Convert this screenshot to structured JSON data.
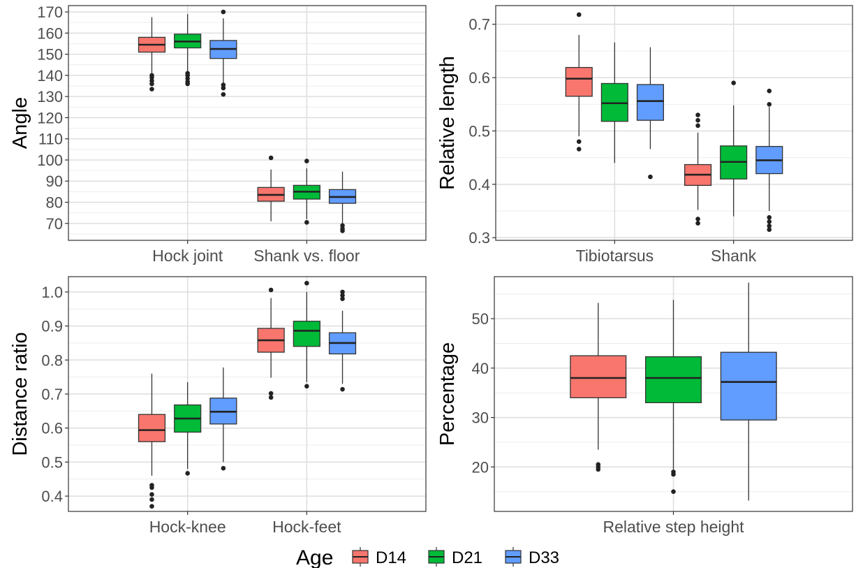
{
  "legend": {
    "title": "Age",
    "placement": "bottom",
    "entries": [
      {
        "label": "D14",
        "color": "#F8766D"
      },
      {
        "label": "D21",
        "color": "#00BA38"
      },
      {
        "label": "D33",
        "color": "#619CFF"
      }
    ]
  },
  "chart_data": [
    {
      "type": "box",
      "title": "",
      "xlabel": "",
      "ylabel": "Angle",
      "ylim": [
        62,
        173
      ],
      "yticks": [
        70,
        80,
        90,
        100,
        110,
        120,
        130,
        140,
        150,
        160,
        170
      ],
      "grid": true,
      "categories": [
        "Hock joint",
        "Shank vs. floor"
      ],
      "series": [
        {
          "name": "D14",
          "boxes": [
            {
              "lower_whisker": 141,
              "q1": 151,
              "median": 154.5,
              "q3": 158,
              "upper_whisker": 167.5,
              "outliers": [
                140,
                139,
                137.5,
                136,
                133.5
              ]
            },
            {
              "lower_whisker": 71,
              "q1": 80.5,
              "median": 83.5,
              "q3": 87,
              "upper_whisker": 95.5,
              "outliers": [
                101
              ]
            }
          ]
        },
        {
          "name": "D21",
          "boxes": [
            {
              "lower_whisker": 141.5,
              "q1": 153,
              "median": 156,
              "q3": 159.5,
              "upper_whisker": 169,
              "outliers": [
                141,
                140,
                138.5,
                137,
                136
              ]
            },
            {
              "lower_whisker": 72,
              "q1": 81.5,
              "median": 85,
              "q3": 88,
              "upper_whisker": 96,
              "outliers": [
                99.5,
                70.5
              ]
            }
          ]
        },
        {
          "name": "D33",
          "boxes": [
            {
              "lower_whisker": 136.5,
              "q1": 148,
              "median": 152.5,
              "q3": 156.5,
              "upper_whisker": 167,
              "outliers": [
                170,
                135.5,
                134,
                131
              ]
            },
            {
              "lower_whisker": 70,
              "q1": 79.5,
              "median": 82.5,
              "q3": 86,
              "upper_whisker": 94.5,
              "outliers": [
                69,
                67.5,
                66.5
              ]
            }
          ]
        }
      ]
    },
    {
      "type": "box",
      "title": "",
      "xlabel": "",
      "ylabel": "Relative length",
      "ylim": [
        0.295,
        0.735
      ],
      "yticks": [
        0.3,
        0.4,
        0.5,
        0.6,
        0.7
      ],
      "grid": true,
      "categories": [
        "Tibiotarsus",
        "Shank"
      ],
      "series": [
        {
          "name": "D14",
          "boxes": [
            {
              "lower_whisker": 0.49,
              "q1": 0.565,
              "median": 0.598,
              "q3": 0.619,
              "upper_whisker": 0.68,
              "outliers": [
                0.718,
                0.48,
                0.466
              ]
            },
            {
              "lower_whisker": 0.352,
              "q1": 0.398,
              "median": 0.418,
              "q3": 0.437,
              "upper_whisker": 0.497,
              "outliers": [
                0.53,
                0.52,
                0.51,
                0.335,
                0.327
              ]
            }
          ]
        },
        {
          "name": "D21",
          "boxes": [
            {
              "lower_whisker": 0.44,
              "q1": 0.518,
              "median": 0.552,
              "q3": 0.589,
              "upper_whisker": 0.666,
              "outliers": []
            },
            {
              "lower_whisker": 0.34,
              "q1": 0.41,
              "median": 0.442,
              "q3": 0.472,
              "upper_whisker": 0.548,
              "outliers": [
                0.59
              ]
            }
          ]
        },
        {
          "name": "D33",
          "boxes": [
            {
              "lower_whisker": 0.466,
              "q1": 0.52,
              "median": 0.556,
              "q3": 0.587,
              "upper_whisker": 0.657,
              "outliers": [
                0.414
              ]
            },
            {
              "lower_whisker": 0.35,
              "q1": 0.42,
              "median": 0.445,
              "q3": 0.471,
              "upper_whisker": 0.545,
              "outliers": [
                0.575,
                0.55,
                0.338,
                0.33,
                0.322,
                0.315
              ]
            }
          ]
        }
      ]
    },
    {
      "type": "box",
      "title": "",
      "xlabel": "",
      "ylabel": "Distance ratio",
      "ylim": [
        0.355,
        1.045
      ],
      "yticks": [
        0.4,
        0.5,
        0.6,
        0.7,
        0.8,
        0.9,
        1.0
      ],
      "yticklabels": [
        "0.4",
        "0.5",
        "0.6",
        "0.7",
        "0.8",
        "0.9",
        "1.0"
      ],
      "grid": true,
      "categories": [
        "Hock-knee",
        "Hock-feet"
      ],
      "series": [
        {
          "name": "D14",
          "boxes": [
            {
              "lower_whisker": 0.46,
              "q1": 0.56,
              "median": 0.594,
              "q3": 0.64,
              "upper_whisker": 0.76,
              "outliers": [
                0.432,
                0.425,
                0.405,
                0.39,
                0.37
              ]
            },
            {
              "lower_whisker": 0.748,
              "q1": 0.823,
              "median": 0.858,
              "q3": 0.893,
              "upper_whisker": 0.982,
              "outliers": [
                1.006,
                0.702,
                0.69
              ]
            }
          ]
        },
        {
          "name": "D21",
          "boxes": [
            {
              "lower_whisker": 0.48,
              "q1": 0.588,
              "median": 0.628,
              "q3": 0.668,
              "upper_whisker": 0.735,
              "outliers": [
                0.467
              ]
            },
            {
              "lower_whisker": 0.735,
              "q1": 0.84,
              "median": 0.886,
              "q3": 0.914,
              "upper_whisker": 1.0,
              "outliers": [
                1.026,
                0.723
              ]
            }
          ]
        },
        {
          "name": "D33",
          "boxes": [
            {
              "lower_whisker": 0.5,
              "q1": 0.612,
              "median": 0.648,
              "q3": 0.688,
              "upper_whisker": 0.778,
              "outliers": [
                0.482
              ]
            },
            {
              "lower_whisker": 0.73,
              "q1": 0.818,
              "median": 0.85,
              "q3": 0.88,
              "upper_whisker": 0.945,
              "outliers": [
                1.0,
                0.99,
                0.98,
                0.714
              ]
            }
          ]
        }
      ]
    },
    {
      "type": "box",
      "title": "",
      "xlabel": "",
      "ylabel": "Percentage",
      "ylim": [
        11,
        58.5
      ],
      "yticks": [
        20,
        30,
        40,
        50
      ],
      "grid": true,
      "categories": [
        "Relative step height"
      ],
      "series": [
        {
          "name": "D14",
          "boxes": [
            {
              "lower_whisker": 23.5,
              "q1": 34,
              "median": 38,
              "q3": 42.5,
              "upper_whisker": 53.2,
              "outliers": [
                20.5,
                20,
                19.5
              ]
            }
          ]
        },
        {
          "name": "D21",
          "boxes": [
            {
              "lower_whisker": 19.5,
              "q1": 33,
              "median": 38,
              "q3": 42.3,
              "upper_whisker": 53.8,
              "outliers": [
                19,
                18.5,
                15
              ]
            }
          ]
        },
        {
          "name": "D33",
          "boxes": [
            {
              "lower_whisker": 13.2,
              "q1": 29.5,
              "median": 37.2,
              "q3": 43.2,
              "upper_whisker": 57.3,
              "outliers": []
            }
          ]
        }
      ]
    }
  ]
}
